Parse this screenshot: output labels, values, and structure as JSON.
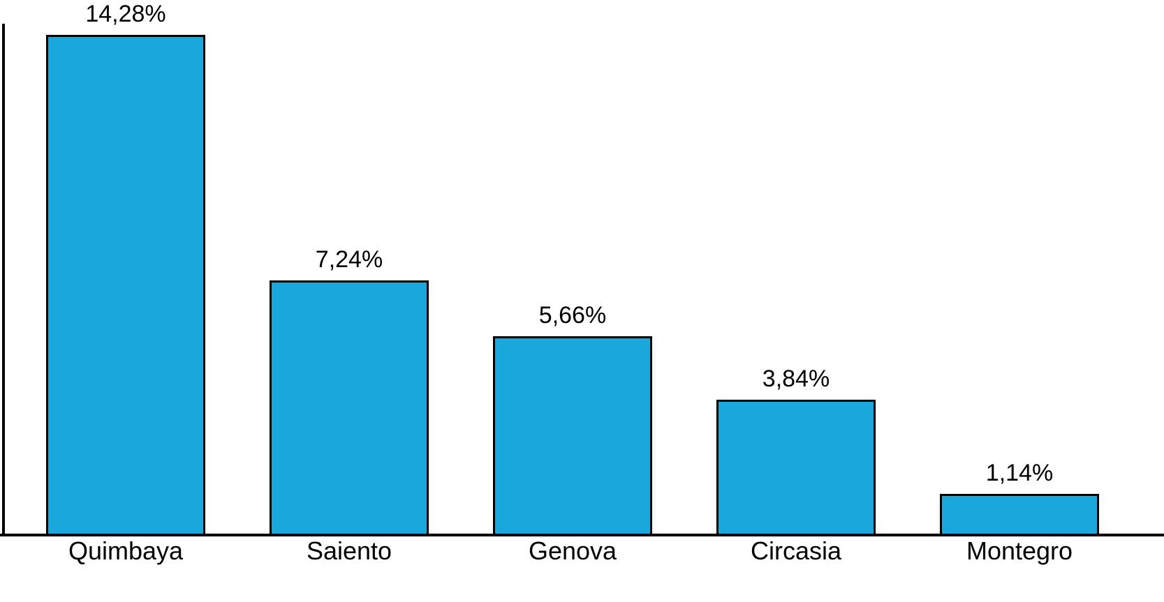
{
  "chart_data": {
    "type": "bar",
    "title": "",
    "xlabel": "",
    "ylabel": "",
    "categories": [
      "Quimbaya",
      "Saiento",
      "Genova",
      "Circasia",
      "Montegro"
    ],
    "values": [
      14.28,
      7.24,
      5.66,
      3.84,
      1.14
    ],
    "value_labels": [
      "14,28%",
      "7,24%",
      "5,66%",
      "3,84%",
      "1,14%"
    ],
    "ylim": [
      0,
      15
    ],
    "grid": false,
    "legend": false,
    "bar_color": "#19A7DC",
    "bar_border_color": "#000000",
    "axis_color": "#000000",
    "background_color": "#ffffff"
  }
}
